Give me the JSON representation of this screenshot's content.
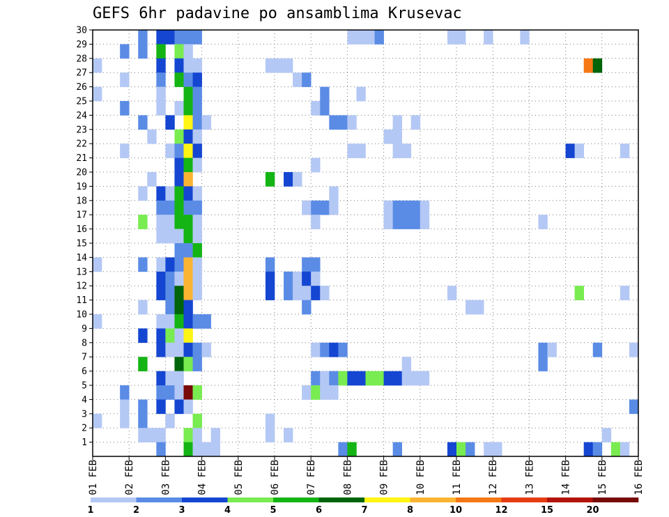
{
  "chart_data": {
    "type": "heatmap",
    "title": "GEFS 6hr padavine po ansamblima Krusevac",
    "x_tick_labels": [
      "01 FEB",
      "02 FEB",
      "03 FEB",
      "04 FEB",
      "05 FEB",
      "06 FEB",
      "07 FEB",
      "08 FEB",
      "09 FEB",
      "10 FEB",
      "11 FEB",
      "12 FEB",
      "13 FEB",
      "14 FEB",
      "15 FEB",
      "16 FEB"
    ],
    "y_tick_labels": [
      "1",
      "2",
      "3",
      "4",
      "5",
      "6",
      "7",
      "8",
      "9",
      "10",
      "11",
      "12",
      "13",
      "14",
      "15",
      "16",
      "17",
      "18",
      "19",
      "20",
      "21",
      "22",
      "23",
      "24",
      "25",
      "26",
      "27",
      "28",
      "29",
      "30"
    ],
    "x_range": [
      0,
      60
    ],
    "y_range": [
      0,
      30
    ],
    "grid": "dotted",
    "legend_placement": "bottom",
    "levels": [
      "1",
      "2",
      "3",
      "4",
      "5",
      "6",
      "7",
      "8",
      "10",
      "12",
      "15",
      "20"
    ],
    "level_colors": [
      "#b4c8f5",
      "#5a8ce6",
      "#1446d2",
      "#78ec50",
      "#14b414",
      "#00640a",
      "#fff514",
      "#fab432",
      "#f57814",
      "#e63c14",
      "#b4140a",
      "#780a0a"
    ],
    "cells": [
      [
        30,
        4,
        6
      ],
      [
        30,
        9,
        2
      ],
      [
        30,
        10,
        3
      ],
      [
        30,
        12,
        1
      ],
      [
        30,
        39,
        0
      ],
      [
        29,
        5,
        1
      ],
      [
        29,
        7,
        2
      ],
      [
        29,
        8,
        2
      ],
      [
        29,
        9,
        1
      ],
      [
        29,
        10,
        1
      ],
      [
        29,
        11,
        1
      ],
      [
        29,
        28,
        0
      ],
      [
        29,
        29,
        0
      ],
      [
        29,
        30,
        0
      ],
      [
        29,
        31,
        1
      ],
      [
        29,
        39,
        0
      ],
      [
        29,
        40,
        0
      ],
      [
        29,
        43,
        0
      ],
      [
        29,
        47,
        0
      ],
      [
        28,
        3,
        1
      ],
      [
        28,
        5,
        1
      ],
      [
        28,
        7,
        4
      ],
      [
        28,
        9,
        3
      ],
      [
        28,
        10,
        0
      ],
      [
        27,
        0,
        0
      ],
      [
        27,
        7,
        2
      ],
      [
        27,
        9,
        2
      ],
      [
        27,
        10,
        0
      ],
      [
        27,
        11,
        0
      ],
      [
        27,
        19,
        0
      ],
      [
        27,
        20,
        0
      ],
      [
        27,
        21,
        0
      ],
      [
        27,
        54,
        8
      ],
      [
        27,
        55,
        5
      ],
      [
        26,
        3,
        0
      ],
      [
        26,
        7,
        1
      ],
      [
        26,
        9,
        4
      ],
      [
        26,
        10,
        1
      ],
      [
        26,
        11,
        2
      ],
      [
        26,
        22,
        0
      ],
      [
        26,
        23,
        1
      ],
      [
        25,
        0,
        0
      ],
      [
        25,
        7,
        0
      ],
      [
        25,
        10,
        4
      ],
      [
        25,
        11,
        1
      ],
      [
        25,
        25,
        1
      ],
      [
        25,
        29,
        0
      ],
      [
        24,
        3,
        1
      ],
      [
        24,
        7,
        0
      ],
      [
        24,
        9,
        0
      ],
      [
        24,
        10,
        4
      ],
      [
        24,
        11,
        1
      ],
      [
        24,
        24,
        0
      ],
      [
        24,
        25,
        1
      ],
      [
        23,
        5,
        1
      ],
      [
        23,
        8,
        2
      ],
      [
        23,
        10,
        6
      ],
      [
        23,
        11,
        1
      ],
      [
        23,
        12,
        0
      ],
      [
        23,
        26,
        1
      ],
      [
        23,
        27,
        1
      ],
      [
        23,
        28,
        0
      ],
      [
        23,
        33,
        0
      ],
      [
        23,
        35,
        0
      ],
      [
        22,
        6,
        0
      ],
      [
        22,
        9,
        3
      ],
      [
        22,
        10,
        2
      ],
      [
        22,
        11,
        0
      ],
      [
        22,
        32,
        0
      ],
      [
        22,
        33,
        0
      ],
      [
        21,
        3,
        0
      ],
      [
        21,
        8,
        0
      ],
      [
        21,
        9,
        1
      ],
      [
        21,
        10,
        6
      ],
      [
        21,
        11,
        2
      ],
      [
        21,
        28,
        0
      ],
      [
        21,
        29,
        0
      ],
      [
        21,
        33,
        0
      ],
      [
        21,
        34,
        0
      ],
      [
        21,
        52,
        2
      ],
      [
        21,
        53,
        0
      ],
      [
        21,
        58,
        0
      ],
      [
        20,
        9,
        2
      ],
      [
        20,
        10,
        4
      ],
      [
        20,
        11,
        0
      ],
      [
        20,
        24,
        0
      ],
      [
        19,
        6,
        0
      ],
      [
        19,
        9,
        2
      ],
      [
        19,
        10,
        7
      ],
      [
        19,
        19,
        4
      ],
      [
        19,
        21,
        2
      ],
      [
        19,
        22,
        0
      ],
      [
        18,
        5,
        0
      ],
      [
        18,
        7,
        2
      ],
      [
        18,
        8,
        0
      ],
      [
        18,
        9,
        4
      ],
      [
        18,
        10,
        2
      ],
      [
        18,
        11,
        0
      ],
      [
        18,
        26,
        0
      ],
      [
        17,
        7,
        1
      ],
      [
        17,
        8,
        1
      ],
      [
        17,
        9,
        4
      ],
      [
        17,
        10,
        1
      ],
      [
        17,
        11,
        1
      ],
      [
        17,
        23,
        0
      ],
      [
        17,
        24,
        1
      ],
      [
        17,
        25,
        1
      ],
      [
        17,
        26,
        0
      ],
      [
        17,
        32,
        0
      ],
      [
        17,
        33,
        1
      ],
      [
        17,
        34,
        1
      ],
      [
        17,
        35,
        1
      ],
      [
        17,
        36,
        0
      ],
      [
        16,
        5,
        3
      ],
      [
        16,
        7,
        0
      ],
      [
        16,
        8,
        0
      ],
      [
        16,
        9,
        4
      ],
      [
        16,
        10,
        4
      ],
      [
        16,
        11,
        0
      ],
      [
        16,
        24,
        0
      ],
      [
        16,
        32,
        0
      ],
      [
        16,
        33,
        1
      ],
      [
        16,
        34,
        1
      ],
      [
        16,
        35,
        1
      ],
      [
        16,
        36,
        0
      ],
      [
        16,
        49,
        0
      ],
      [
        15,
        7,
        0
      ],
      [
        15,
        8,
        0
      ],
      [
        15,
        9,
        0
      ],
      [
        15,
        10,
        4
      ],
      [
        15,
        11,
        0
      ],
      [
        14,
        9,
        1
      ],
      [
        14,
        10,
        1
      ],
      [
        14,
        11,
        4
      ],
      [
        13,
        0,
        0
      ],
      [
        13,
        5,
        1
      ],
      [
        13,
        7,
        0
      ],
      [
        13,
        8,
        2
      ],
      [
        13,
        9,
        1
      ],
      [
        13,
        10,
        7
      ],
      [
        13,
        11,
        0
      ],
      [
        13,
        19,
        1
      ],
      [
        13,
        23,
        1
      ],
      [
        13,
        24,
        1
      ],
      [
        12,
        7,
        2
      ],
      [
        12,
        8,
        1
      ],
      [
        12,
        9,
        0
      ],
      [
        12,
        10,
        7
      ],
      [
        12,
        11,
        0
      ],
      [
        12,
        19,
        2
      ],
      [
        12,
        21,
        1
      ],
      [
        12,
        22,
        0
      ],
      [
        12,
        23,
        2
      ],
      [
        12,
        24,
        0
      ],
      [
        11,
        7,
        2
      ],
      [
        11,
        8,
        1
      ],
      [
        11,
        9,
        5
      ],
      [
        11,
        10,
        7
      ],
      [
        11,
        11,
        0
      ],
      [
        11,
        19,
        2
      ],
      [
        11,
        21,
        1
      ],
      [
        11,
        22,
        0
      ],
      [
        11,
        23,
        0
      ],
      [
        11,
        24,
        2
      ],
      [
        11,
        25,
        0
      ],
      [
        11,
        39,
        0
      ],
      [
        11,
        53,
        3
      ],
      [
        11,
        58,
        0
      ],
      [
        10,
        5,
        0
      ],
      [
        10,
        8,
        1
      ],
      [
        10,
        9,
        5
      ],
      [
        10,
        10,
        2
      ],
      [
        10,
        23,
        1
      ],
      [
        10,
        41,
        0
      ],
      [
        10,
        42,
        0
      ],
      [
        9,
        0,
        0
      ],
      [
        9,
        7,
        0
      ],
      [
        9,
        8,
        0
      ],
      [
        9,
        9,
        4
      ],
      [
        9,
        10,
        2
      ],
      [
        9,
        11,
        1
      ],
      [
        9,
        12,
        1
      ],
      [
        8,
        5,
        2
      ],
      [
        8,
        7,
        2
      ],
      [
        8,
        8,
        3
      ],
      [
        8,
        9,
        0
      ],
      [
        8,
        10,
        6
      ],
      [
        7,
        7,
        2
      ],
      [
        7,
        8,
        0
      ],
      [
        7,
        9,
        0
      ],
      [
        7,
        10,
        2
      ],
      [
        7,
        11,
        1
      ],
      [
        7,
        12,
        0
      ],
      [
        7,
        24,
        0
      ],
      [
        7,
        25,
        1
      ],
      [
        7,
        26,
        2
      ],
      [
        7,
        27,
        1
      ],
      [
        7,
        49,
        1
      ],
      [
        7,
        50,
        0
      ],
      [
        7,
        55,
        1
      ],
      [
        7,
        59,
        0
      ],
      [
        6,
        5,
        4
      ],
      [
        6,
        9,
        5
      ],
      [
        6,
        10,
        3
      ],
      [
        6,
        11,
        1
      ],
      [
        6,
        34,
        0
      ],
      [
        6,
        49,
        1
      ],
      [
        5,
        7,
        2
      ],
      [
        5,
        8,
        0
      ],
      [
        5,
        9,
        0
      ],
      [
        5,
        24,
        1
      ],
      [
        5,
        25,
        0
      ],
      [
        5,
        26,
        1
      ],
      [
        5,
        27,
        3
      ],
      [
        5,
        28,
        2
      ],
      [
        5,
        29,
        2
      ],
      [
        5,
        30,
        3
      ],
      [
        5,
        31,
        3
      ],
      [
        5,
        32,
        2
      ],
      [
        5,
        33,
        2
      ],
      [
        5,
        34,
        0
      ],
      [
        5,
        35,
        0
      ],
      [
        5,
        36,
        0
      ],
      [
        4,
        3,
        1
      ],
      [
        4,
        7,
        1
      ],
      [
        4,
        8,
        1
      ],
      [
        4,
        9,
        0
      ],
      [
        4,
        10,
        11
      ],
      [
        4,
        11,
        3
      ],
      [
        4,
        23,
        0
      ],
      [
        4,
        24,
        3
      ],
      [
        4,
        25,
        0
      ],
      [
        4,
        26,
        0
      ],
      [
        3,
        3,
        0
      ],
      [
        3,
        5,
        1
      ],
      [
        3,
        7,
        2
      ],
      [
        3,
        9,
        2
      ],
      [
        3,
        10,
        0
      ],
      [
        3,
        59,
        1
      ],
      [
        2,
        0,
        0
      ],
      [
        2,
        3,
        0
      ],
      [
        2,
        5,
        1
      ],
      [
        2,
        8,
        0
      ],
      [
        2,
        11,
        3
      ],
      [
        2,
        19,
        0
      ],
      [
        1,
        5,
        0
      ],
      [
        1,
        6,
        0
      ],
      [
        1,
        7,
        0
      ],
      [
        1,
        10,
        3
      ],
      [
        1,
        11,
        0
      ],
      [
        1,
        13,
        0
      ],
      [
        1,
        19,
        0
      ],
      [
        1,
        21,
        0
      ],
      [
        1,
        56,
        0
      ],
      [
        0,
        7,
        1
      ],
      [
        0,
        10,
        4
      ],
      [
        0,
        11,
        0
      ],
      [
        0,
        12,
        0
      ],
      [
        0,
        13,
        0
      ],
      [
        0,
        27,
        1
      ],
      [
        0,
        28,
        4
      ],
      [
        0,
        33,
        1
      ],
      [
        0,
        39,
        2
      ],
      [
        0,
        40,
        3
      ],
      [
        0,
        41,
        1
      ],
      [
        0,
        43,
        0
      ],
      [
        0,
        44,
        0
      ],
      [
        0,
        54,
        2
      ],
      [
        0,
        55,
        1
      ],
      [
        0,
        57,
        3
      ],
      [
        0,
        58,
        0
      ],
      [
        -1,
        3,
        0
      ],
      [
        -1,
        8,
        1
      ],
      [
        -1,
        10,
        3
      ],
      [
        -1,
        29,
        0
      ],
      [
        -1,
        31,
        0
      ],
      [
        -1,
        36,
        0
      ],
      [
        -1,
        37,
        1
      ],
      [
        -1,
        46,
        0
      ],
      [
        -1,
        52,
        0
      ]
    ]
  }
}
